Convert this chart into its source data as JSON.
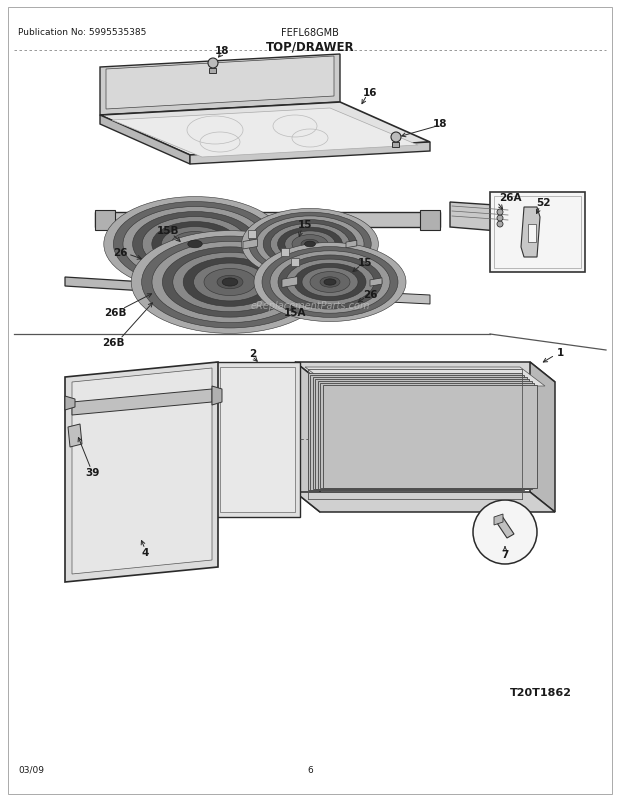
{
  "title": "TOP/DRAWER",
  "pub_no": "Publication No: 5995535385",
  "model": "FEFL68GMB",
  "diagram_code": "T20T1862",
  "date": "03/09",
  "page": "6",
  "bg_color": "#ffffff",
  "text_color": "#1a1a1a",
  "watermark": "eReplacementParts.com",
  "figsize": [
    6.2,
    8.03
  ],
  "dpi": 100
}
